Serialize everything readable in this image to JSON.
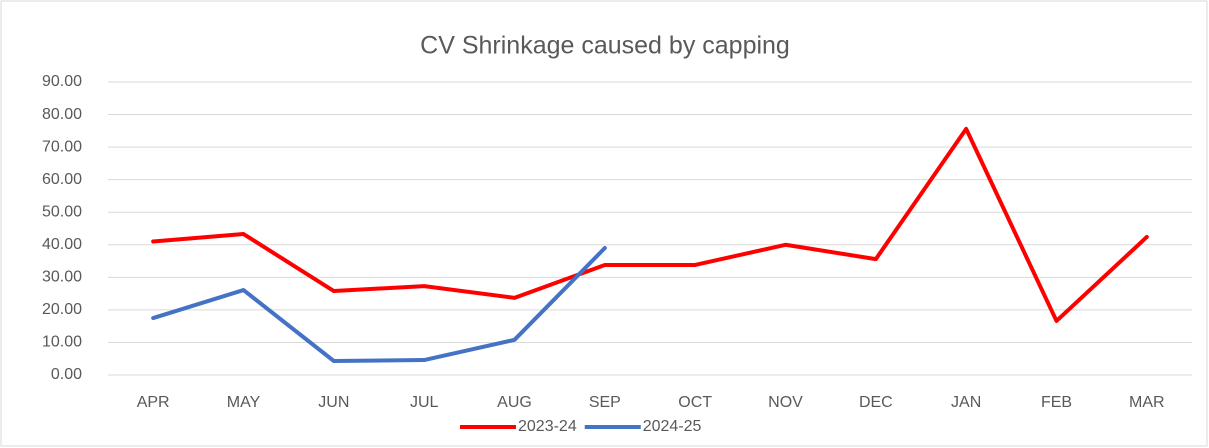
{
  "chart_data": {
    "type": "line",
    "title": "CV Shrinkage caused by capping",
    "categories": [
      "APR",
      "MAY",
      "JUN",
      "JUL",
      "AUG",
      "SEP",
      "OCT",
      "NOV",
      "DEC",
      "JAN",
      "FEB",
      "MAR"
    ],
    "series": [
      {
        "name": "2023-24",
        "color": "#ff0000",
        "values": [
          41,
          43.3,
          25.8,
          27.3,
          23.7,
          33.8,
          33.8,
          40,
          35.6,
          75.6,
          16.6,
          42.4
        ]
      },
      {
        "name": "2024-25",
        "color": "#4472c4",
        "values": [
          17.5,
          26.1,
          4.3,
          4.6,
          10.8,
          39,
          null,
          null,
          null,
          null,
          null,
          null
        ]
      }
    ],
    "ylim": [
      0,
      90
    ],
    "yticks": [
      {
        "value": 0,
        "label": "0.00"
      },
      {
        "value": 10,
        "label": "10.00"
      },
      {
        "value": 20,
        "label": "20.00"
      },
      {
        "value": 30,
        "label": "30.00"
      },
      {
        "value": 40,
        "label": "40.00"
      },
      {
        "value": 50,
        "label": "50.00"
      },
      {
        "value": 60,
        "label": "60.00"
      },
      {
        "value": 70,
        "label": "70.00"
      },
      {
        "value": 80,
        "label": "80.00"
      },
      {
        "value": 90,
        "label": "90.00"
      }
    ],
    "grid": true,
    "legend": "bottom"
  }
}
